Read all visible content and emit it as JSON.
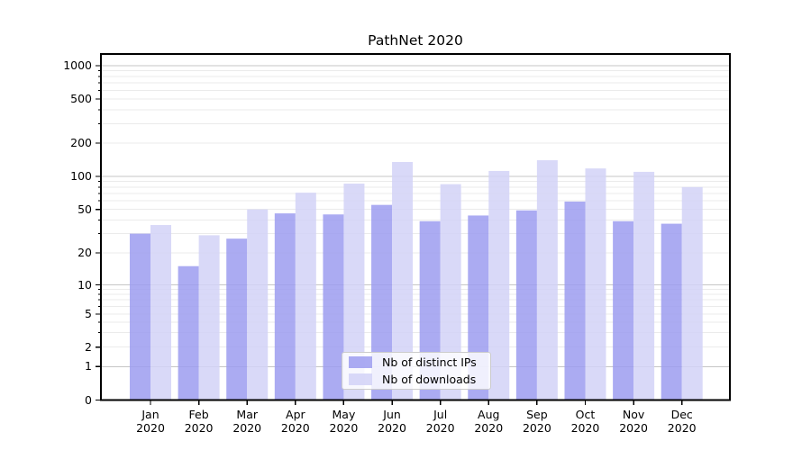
{
  "title": "PathNet 2020",
  "colors": {
    "ips": "#9c9cf0",
    "downloads": "#d2d2f7",
    "grid_major": "#c6c6c6",
    "grid_minor": "#ebebeb",
    "axis": "#000000"
  },
  "legend": {
    "items": [
      {
        "label": "Nb of distinct IPs",
        "color_key": "ips"
      },
      {
        "label": "Nb of downloads",
        "color_key": "downloads"
      }
    ]
  },
  "chart_data": {
    "type": "bar",
    "title": "PathNet 2020",
    "categories": [
      "Jan",
      "Feb",
      "Mar",
      "Apr",
      "May",
      "Jun",
      "Jul",
      "Aug",
      "Sep",
      "Oct",
      "Nov",
      "Dec"
    ],
    "category_year": "2020",
    "series": [
      {
        "name": "Nb of distinct IPs",
        "values": [
          30,
          15,
          27,
          46,
          45,
          55,
          39,
          44,
          49,
          59,
          39,
          37
        ]
      },
      {
        "name": "Nb of downloads",
        "values": [
          36,
          29,
          50,
          71,
          86,
          135,
          85,
          112,
          140,
          118,
          110,
          80
        ]
      }
    ],
    "xlabel": "",
    "ylabel": "",
    "yscale": "symlog",
    "y_ticks": [
      0,
      1,
      2,
      5,
      10,
      20,
      50,
      100,
      200,
      500,
      1000
    ],
    "ylim": [
      0,
      1300
    ],
    "grid": true,
    "legend_position": "lower center"
  }
}
